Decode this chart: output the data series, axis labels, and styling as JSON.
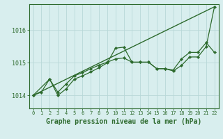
{
  "background_color": "#d8eeee",
  "plot_bg_color": "#d8eeee",
  "grid_color": "#b8d8d8",
  "line_color": "#2d6a2d",
  "xlabel": "Graphe pression niveau de la mer (hPa)",
  "xlabel_fontsize": 7,
  "ylabel_ticks": [
    1014,
    1015,
    1016
  ],
  "xlim": [
    -0.5,
    22.5
  ],
  "ylim": [
    1013.6,
    1016.8
  ],
  "xticks": [
    0,
    1,
    2,
    3,
    4,
    5,
    6,
    7,
    8,
    9,
    10,
    11,
    12,
    13,
    14,
    15,
    16,
    17,
    18,
    19,
    20,
    21,
    22
  ],
  "series1_x": [
    0,
    2,
    3,
    4,
    5,
    6,
    7,
    8,
    9,
    10,
    11,
    12,
    13,
    14,
    15,
    16,
    17,
    18,
    19,
    20,
    21,
    22
  ],
  "series1_y": [
    1014.0,
    1014.5,
    1014.1,
    1014.35,
    1014.6,
    1014.7,
    1014.82,
    1014.93,
    1015.02,
    1015.12,
    1015.15,
    1015.02,
    1015.02,
    1015.02,
    1014.82,
    1014.82,
    1014.78,
    1015.12,
    1015.32,
    1015.32,
    1015.62,
    1015.32
  ],
  "series2_x": [
    0,
    1,
    2,
    3,
    4,
    5,
    6,
    7,
    8,
    9,
    10,
    11,
    12,
    13,
    14,
    15,
    16,
    17,
    18,
    19,
    20,
    21,
    22
  ],
  "series2_y": [
    1014.0,
    1014.1,
    1014.5,
    1014.0,
    1014.2,
    1014.5,
    1014.6,
    1014.72,
    1014.85,
    1015.0,
    1015.45,
    1015.48,
    1015.02,
    1015.02,
    1015.02,
    1014.82,
    1014.82,
    1014.75,
    1014.92,
    1015.18,
    1015.18,
    1015.5,
    1016.72
  ],
  "series3_x": [
    0,
    22
  ],
  "series3_y": [
    1014.0,
    1016.72
  ]
}
